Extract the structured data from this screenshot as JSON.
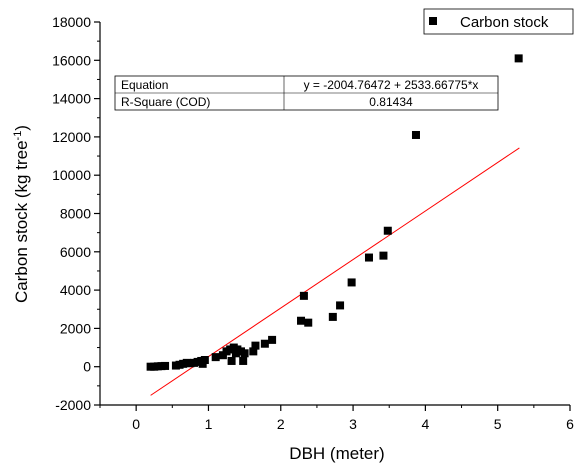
{
  "chart_data": {
    "type": "scatter",
    "xlabel": "DBH (meter)",
    "ylabel_main": "Carbon stock (kg tree",
    "ylabel_sup": "-1",
    "ylabel_close": ")",
    "xlim": [
      -0.5,
      6
    ],
    "ylim": [
      -2000,
      18000
    ],
    "x_ticks": [
      0,
      1,
      2,
      3,
      4,
      5,
      6
    ],
    "y_ticks": [
      -2000,
      0,
      2000,
      4000,
      6000,
      8000,
      10000,
      12000,
      14000,
      16000,
      18000
    ],
    "legend": {
      "label": "Carbon stock",
      "position": "top-right"
    },
    "series": [
      {
        "name": "Carbon stock",
        "marker": "square",
        "color": "#000000",
        "points": [
          [
            0.2,
            0
          ],
          [
            0.25,
            0
          ],
          [
            0.3,
            20
          ],
          [
            0.35,
            30
          ],
          [
            0.4,
            40
          ],
          [
            0.55,
            60
          ],
          [
            0.6,
            100
          ],
          [
            0.65,
            150
          ],
          [
            0.7,
            200
          ],
          [
            0.75,
            180
          ],
          [
            0.8,
            200
          ],
          [
            0.85,
            250
          ],
          [
            0.9,
            300
          ],
          [
            0.92,
            150
          ],
          [
            0.95,
            350
          ],
          [
            1.1,
            500
          ],
          [
            1.2,
            600
          ],
          [
            1.25,
            800
          ],
          [
            1.3,
            900
          ],
          [
            1.32,
            300
          ],
          [
            1.35,
            1000
          ],
          [
            1.38,
            700
          ],
          [
            1.4,
            900
          ],
          [
            1.45,
            800
          ],
          [
            1.48,
            300
          ],
          [
            1.5,
            700
          ],
          [
            1.62,
            800
          ],
          [
            1.65,
            1100
          ],
          [
            1.78,
            1200
          ],
          [
            1.88,
            1400
          ],
          [
            2.28,
            2400
          ],
          [
            2.32,
            3700
          ],
          [
            2.38,
            2300
          ],
          [
            2.72,
            2600
          ],
          [
            2.82,
            3200
          ],
          [
            2.98,
            4400
          ],
          [
            3.22,
            5700
          ],
          [
            3.42,
            5800
          ],
          [
            3.48,
            7100
          ],
          [
            3.87,
            12100
          ],
          [
            5.29,
            16100
          ]
        ]
      }
    ],
    "fit": {
      "color": "#ff0000",
      "intercept": -2004.76472,
      "slope": 2533.66775,
      "x_range": [
        0.2,
        5.3
      ]
    },
    "stats_table": {
      "equation_label": "Equation",
      "equation_value": "y = -2004.76472 + 2533.66775*x",
      "r2_label": "R-Square (COD)",
      "r2_value": "0.81434"
    }
  }
}
